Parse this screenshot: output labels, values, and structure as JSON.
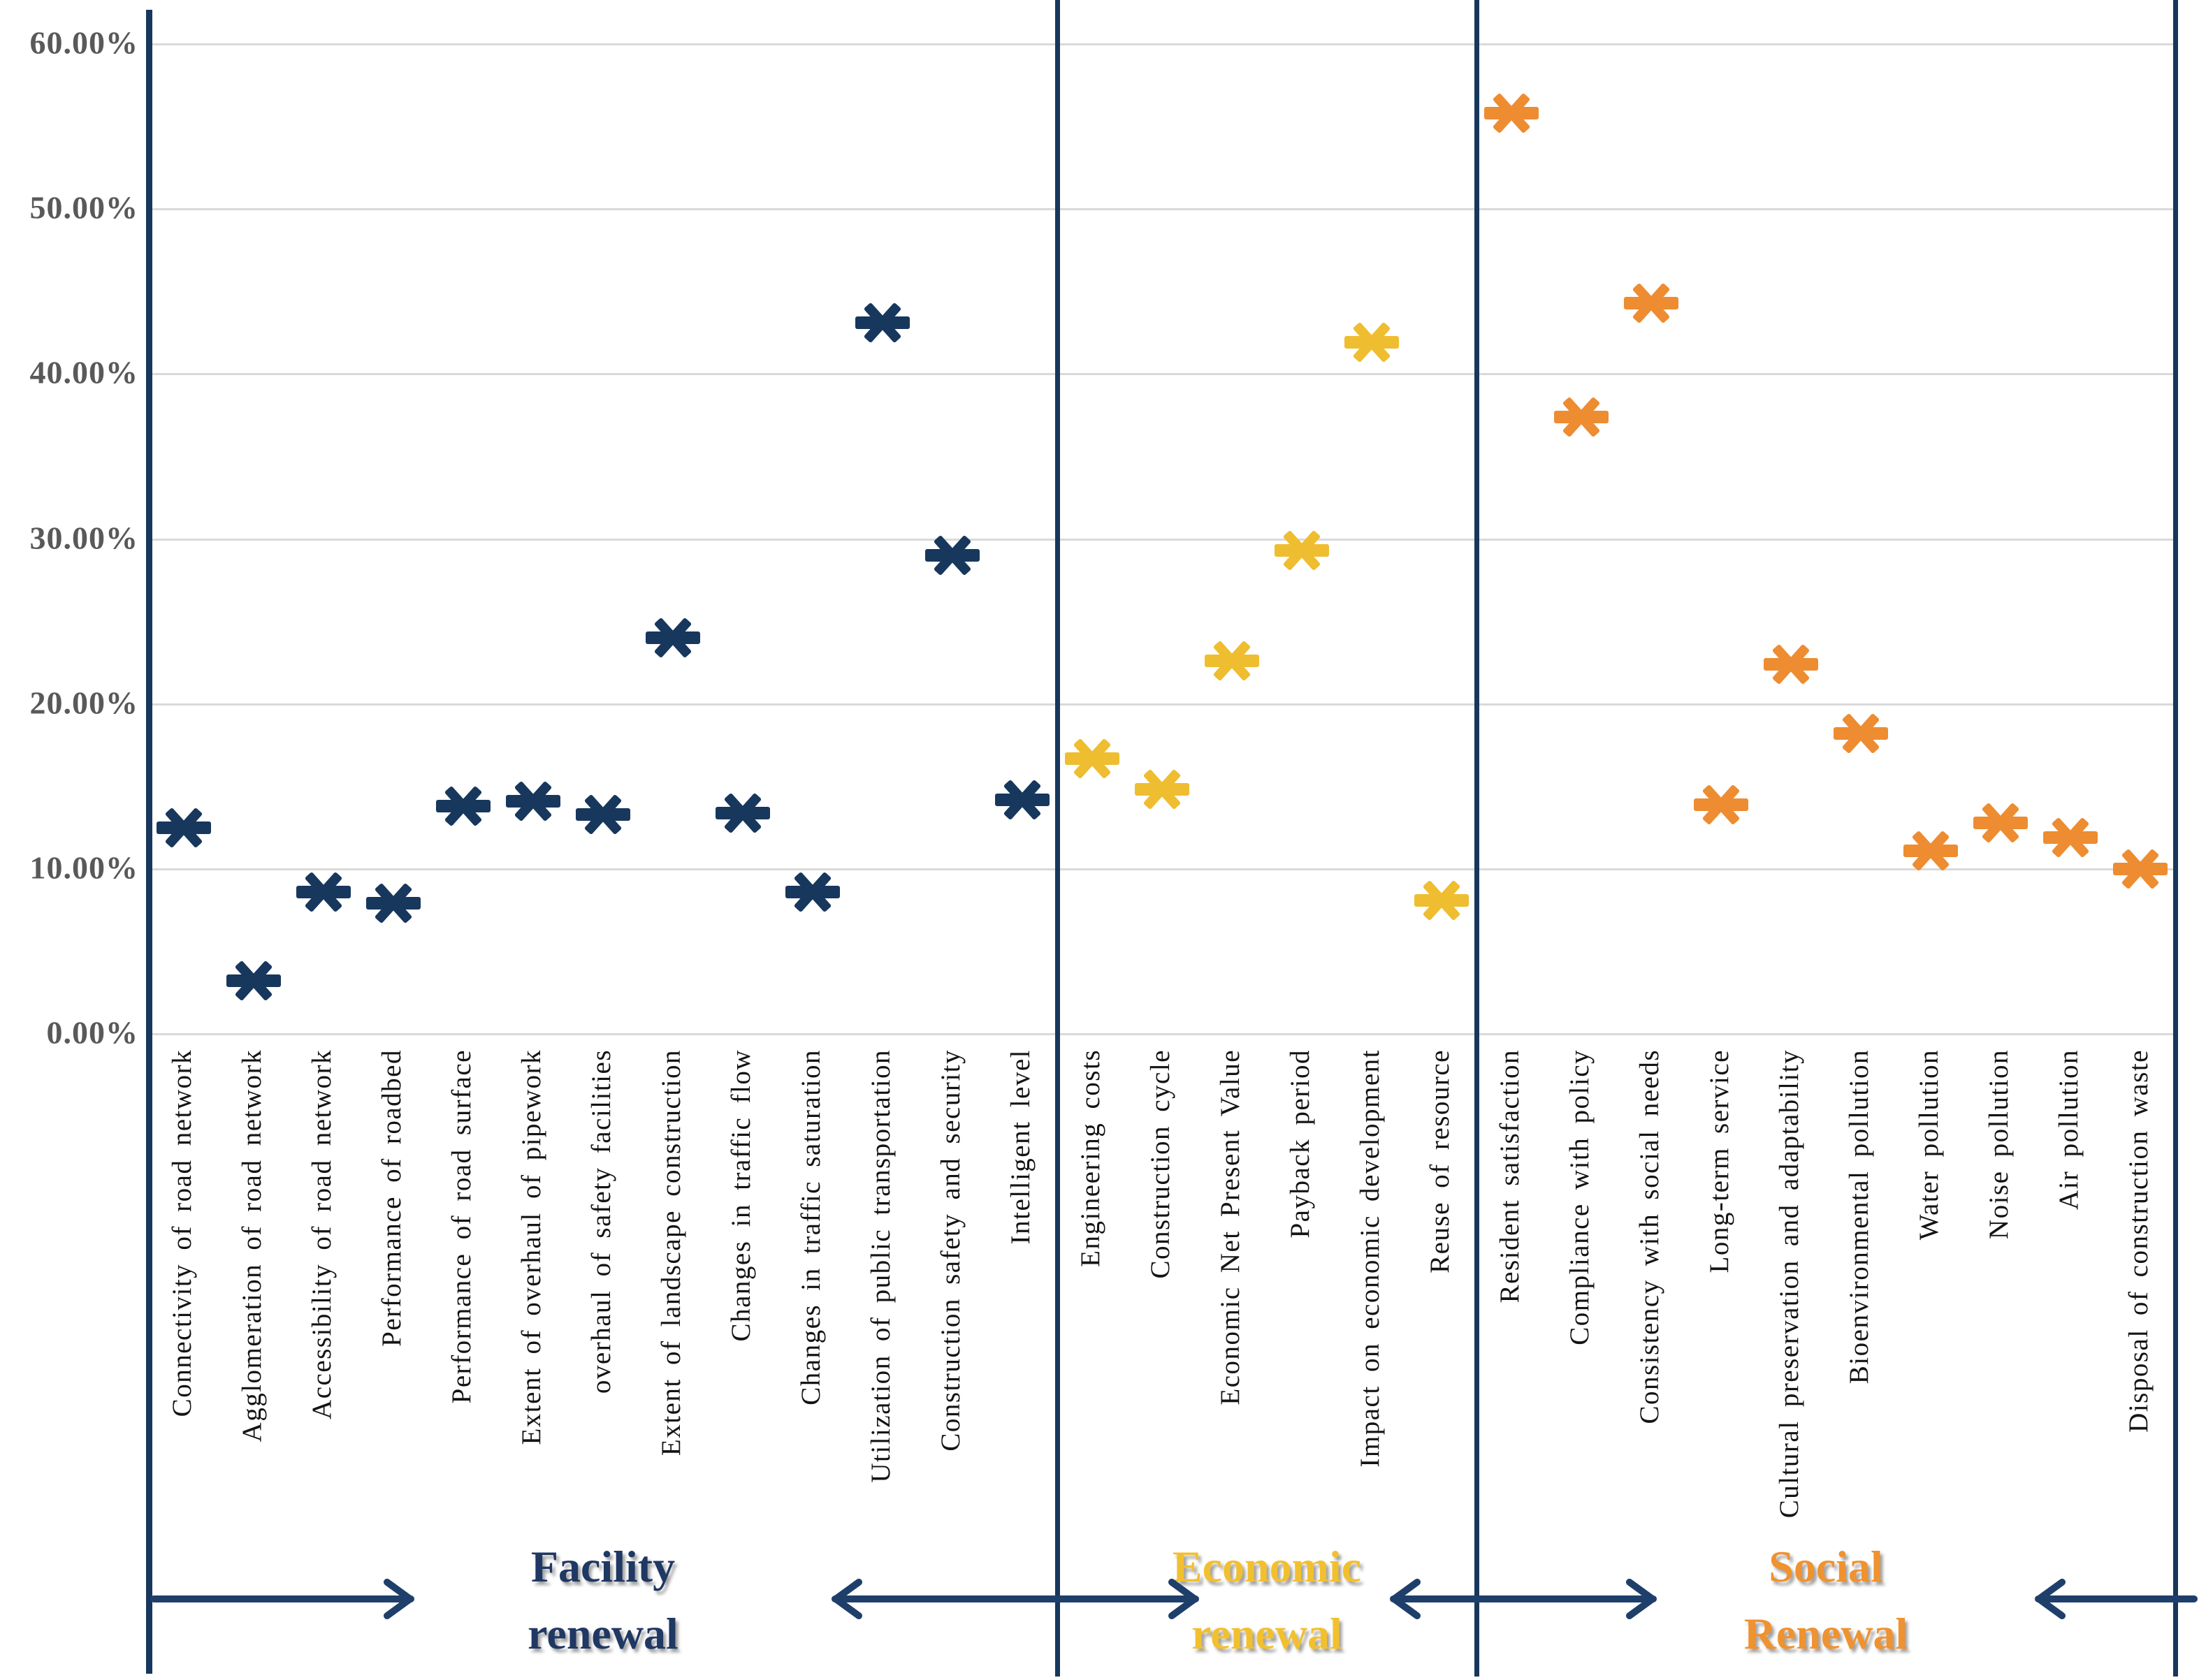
{
  "chart_data": {
    "type": "scatter",
    "title": "",
    "xlabel": "",
    "ylabel": "",
    "ylim": [
      0,
      60
    ],
    "grid": true,
    "legend_position": "none",
    "marker_style": "six-spoke-asterisk",
    "ytick_labels": [
      "60.00%",
      "50.00%",
      "40.00%",
      "30.00%",
      "20.00%",
      "10.00%",
      "0.00%"
    ],
    "groups": [
      {
        "name": "Facility renewal",
        "label_lines": [
          "Facility",
          "renewal"
        ],
        "marker_color": "#17375d",
        "title_color": "#1f3864",
        "points": [
          {
            "label": "Connectivity of road network",
            "value": 12.5
          },
          {
            "label": "Agglomeration of road network",
            "value": 3.2
          },
          {
            "label": "Accessibility of road network",
            "value": 8.6
          },
          {
            "label": "Performance of roadbed",
            "value": 7.9
          },
          {
            "label": "Performance of road surface",
            "value": 13.8
          },
          {
            "label": "Extent of overhaul of pipework",
            "value": 14.1
          },
          {
            "label": "overhaul of safety facilities",
            "value": 13.3
          },
          {
            "label": "Extent of landscape construction",
            "value": 24.0
          },
          {
            "label": "Changes in traffic flow",
            "value": 13.4
          },
          {
            "label": "Changes in traffic saturation",
            "value": 8.6
          },
          {
            "label": "Utilization of public transportation",
            "value": 43.1
          },
          {
            "label": "Construction safety and security",
            "value": 29.0
          },
          {
            "label": "Intelligent level",
            "value": 14.2
          }
        ]
      },
      {
        "name": "Economic renewal",
        "label_lines": [
          "Economic",
          "renewal"
        ],
        "marker_color": "#efbd30",
        "title_color": "#f2c02f",
        "points": [
          {
            "label": "Engineering costs",
            "value": 16.7
          },
          {
            "label": "Construction cycle",
            "value": 14.8
          },
          {
            "label": "Economic Net Present Value",
            "value": 22.6
          },
          {
            "label": "Payback period",
            "value": 29.3
          },
          {
            "label": "Impact on economic development",
            "value": 41.9
          },
          {
            "label": "Reuse of resource",
            "value": 8.1
          }
        ]
      },
      {
        "name": "Social Renewal",
        "label_lines": [
          "Social",
          "Renewal"
        ],
        "marker_color": "#ee8c31",
        "title_color": "#ef9230",
        "points": [
          {
            "label": "Resident satisfaction",
            "value": 55.8
          },
          {
            "label": "Compliance with policy",
            "value": 37.4
          },
          {
            "label": "Consistency with social needs",
            "value": 44.3
          },
          {
            "label": "Long-term service",
            "value": 13.9
          },
          {
            "label": "Cultural preservation and adaptability",
            "value": 22.4
          },
          {
            "label": "Bioenvironmental pollution",
            "value": 18.2
          },
          {
            "label": "Water pollution",
            "value": 11.1
          },
          {
            "label": "Noise pollution",
            "value": 12.8
          },
          {
            "label": "Air pollution",
            "value": 11.9
          },
          {
            "label": "Disposal of construction waste",
            "value": 10.0
          }
        ]
      }
    ],
    "colors": {
      "axis": "#17375d",
      "gridline": "#d9d9d9",
      "ytick_text": "#595959",
      "category_text": "#141414",
      "arrow": "#1f3f6b"
    }
  }
}
